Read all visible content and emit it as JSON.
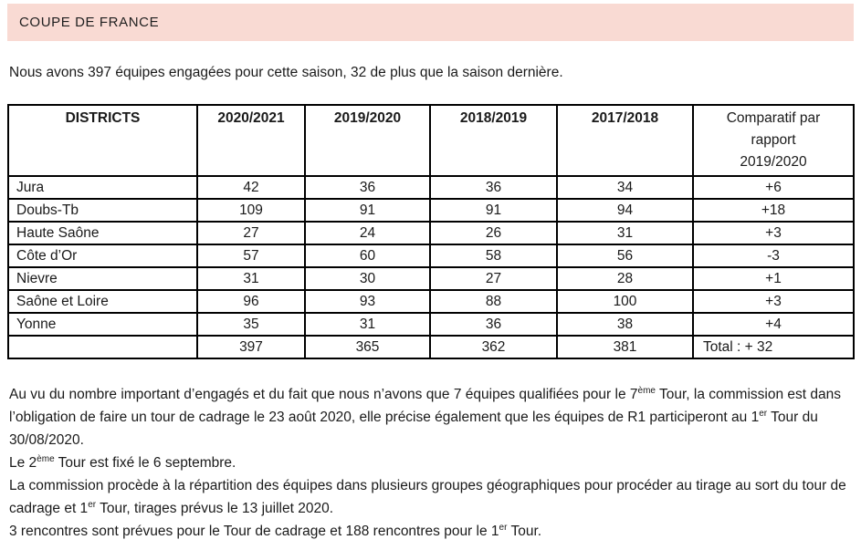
{
  "banner": {
    "title": "COUPE DE FRANCE"
  },
  "intro": "Nous avons 397 équipes engagées pour cette saison, 32 de plus que la saison dernière.",
  "table": {
    "headers": [
      "DISTRICTS",
      "2020/2021",
      "2019/2020",
      "2018/2019",
      "2017/2018",
      "Comparatif par rapport 2019/2020"
    ],
    "rows": [
      [
        "Jura",
        "42",
        "36",
        "36",
        "34",
        "+6"
      ],
      [
        "Doubs-Tb",
        "109",
        "91",
        "91",
        "94",
        "+18"
      ],
      [
        "Haute Saône",
        "27",
        "24",
        "26",
        "31",
        "+3"
      ],
      [
        "Côte d’Or",
        "57",
        "60",
        "58",
        "56",
        "-3"
      ],
      [
        "Nievre",
        "31",
        "30",
        "27",
        "28",
        "+1"
      ],
      [
        "Saône et Loire",
        "96",
        "93",
        "88",
        "100",
        "+3"
      ],
      [
        "Yonne",
        "35",
        "31",
        "36",
        "38",
        "+4"
      ],
      [
        "",
        "397",
        "365",
        "362",
        "381",
        "Total : + 32"
      ]
    ]
  },
  "paragraphs": [
    {
      "segments": [
        {
          "text": "Au vu du nombre important d’engagés et du fait que nous n’avons que 7 équipes qualifiées pour le 7",
          "sup": false
        },
        {
          "text": "ème",
          "sup": true
        },
        {
          "text": " Tour, la commission est dans l’obligation de faire un tour de cadrage le 23 août 2020, elle précise également que les équipes de R1 participeront au 1",
          "sup": false
        },
        {
          "text": "er",
          "sup": true
        },
        {
          "text": " Tour du 30/08/2020.",
          "sup": false
        }
      ]
    },
    {
      "segments": [
        {
          "text": "Le 2",
          "sup": false
        },
        {
          "text": "ème",
          "sup": true
        },
        {
          "text": " Tour est fixé le 6 septembre.",
          "sup": false
        }
      ]
    },
    {
      "segments": [
        {
          "text": "La commission procède à la répartition des équipes dans plusieurs groupes géographiques pour procéder au tirage au sort du tour de cadrage et 1",
          "sup": false
        },
        {
          "text": "er",
          "sup": true
        },
        {
          "text": " Tour, tirages prévus le 13 juillet 2020.",
          "sup": false
        }
      ]
    },
    {
      "segments": [
        {
          "text": "3 rencontres sont prévues pour le Tour de cadrage et 188 rencontres pour le 1",
          "sup": false
        },
        {
          "text": "er",
          "sup": true
        },
        {
          "text": " Tour.",
          "sup": false
        }
      ]
    }
  ]
}
